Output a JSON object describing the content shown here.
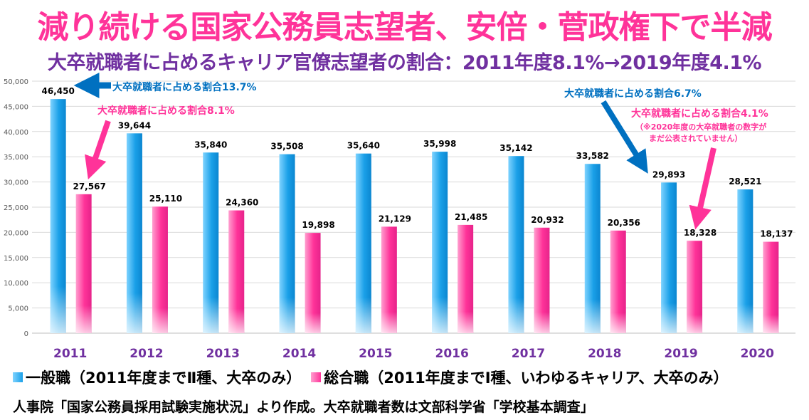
{
  "title": "減り続ける国家公務員志望者、安倍・菅政権下で半減",
  "subtitle": "大卒就職者に占めるキャリア官僚志望者の割合：2011年度8.1%→2019年度4.1%",
  "legend": {
    "series1": "一般職（2011年度までⅡ種、大卒のみ）",
    "series2": "総合職（2011年度までⅠ種、いわゆるキャリア、大卒のみ）"
  },
  "source": "人事院「国家公務員採用試験実施状況」より作成。大卒就職者数は文部科学省「学校基本調査」",
  "colors": {
    "title": "#ff3399",
    "subtitle": "#7030a0",
    "series1": "#1aa0e8",
    "series2": "#ff3399",
    "callout_blue": "#0070c0",
    "callout_pink": "#ff3399",
    "xtick": "#7030a0"
  },
  "annotations": [
    {
      "text": "大卒就職者に占める割合",
      "value": "13.7%",
      "color": "#0070c0"
    },
    {
      "text": "大卒就職者に占める割合",
      "value": "8.1%",
      "color": "#ff3399"
    },
    {
      "text": "大卒就職者に占める割合",
      "value": "6.7%",
      "color": "#0070c0"
    },
    {
      "text": "大卒就職者に占める割合",
      "value": "4.1%",
      "color": "#ff3399"
    },
    {
      "text": "（※2020年度の大卒就職者の数字が",
      "value": "",
      "color": "#ff3399"
    },
    {
      "text": "まだ公表されていません）",
      "value": "",
      "color": "#ff3399"
    }
  ],
  "chart_data": {
    "type": "bar",
    "categories": [
      "2011",
      "2012",
      "2013",
      "2014",
      "2015",
      "2016",
      "2017",
      "2018",
      "2019",
      "2020"
    ],
    "series": [
      {
        "name": "一般職（2011年度までⅡ種、大卒のみ）",
        "values": [
          46450,
          39644,
          35840,
          35508,
          35640,
          35998,
          35142,
          33582,
          29893,
          28521
        ]
      },
      {
        "name": "総合職（2011年度までⅠ種、いわゆるキャリア、大卒のみ）",
        "values": [
          27567,
          25110,
          24360,
          19898,
          21129,
          21485,
          20932,
          20356,
          18328,
          18137
        ]
      }
    ],
    "data_labels": [
      [
        "46,450",
        "39,644",
        "35,840",
        "35,508",
        "35,640",
        "35,998",
        "35,142",
        "33,582",
        "29,893",
        "28,521"
      ],
      [
        "27,567",
        "25,110",
        "24,360",
        "19,898",
        "21,129",
        "21,485",
        "20,932",
        "20,356",
        "18,328",
        "18,137"
      ]
    ],
    "ylim": [
      0,
      50000
    ],
    "yticks": [
      0,
      5000,
      10000,
      15000,
      20000,
      25000,
      30000,
      35000,
      40000,
      45000,
      50000
    ],
    "ytick_labels": [
      "0",
      "5,000",
      "10,000",
      "15,000",
      "20,000",
      "25,000",
      "30,000",
      "35,000",
      "40,000",
      "45,000",
      "50,000"
    ],
    "grid": true,
    "legend_position": "bottom"
  }
}
